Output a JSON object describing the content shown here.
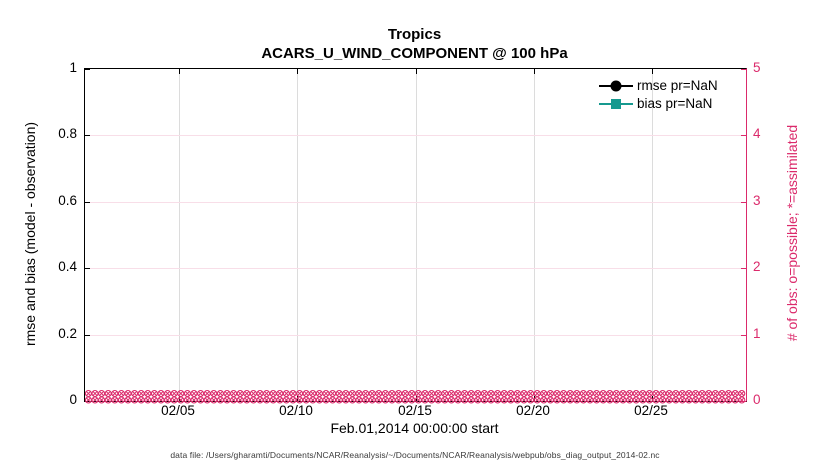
{
  "title": "Tropics",
  "subtitle": "ACARS_U_WIND_COMPONENT @ 100 hPa",
  "xlabel": "Feb.01,2014 00:00:00 start",
  "ylabel_left": "rmse and bias (model - observation)",
  "ylabel_right": "# of obs: o=possible; *=assimilated",
  "caption": "data file: /Users/gharamti/Documents/NCAR/Reanalysis/~/Documents/NCAR/Reanalysis/webpub/obs_diag_output_2014-02.nc",
  "legend": [
    {
      "label": "rmse pr=NaN",
      "color": "#000000",
      "marker": "circle"
    },
    {
      "label": "bias pr=NaN",
      "color": "#16998F",
      "marker": "square"
    }
  ],
  "colors": {
    "pink": "#DB2A6B",
    "grid_pink": "#F8DEE8",
    "grid_gray": "#DCDCDC",
    "teal": "#16998F",
    "black": "#000000"
  },
  "chart_data": {
    "type": "line",
    "title": "Tropics",
    "subtitle": "ACARS_U_WIND_COMPONENT @ 100 hPa",
    "xlabel": "Feb.01,2014 00:00:00 start",
    "ylabel_left": "rmse and bias (model - observation)",
    "ylabel_right": "# of obs: o=possible; *=assimilated",
    "x_axis": {
      "range_days": [
        0,
        28
      ],
      "start": "Feb.01,2014 00:00:00",
      "ticks": [
        {
          "label": "02/05",
          "day": 4
        },
        {
          "label": "02/10",
          "day": 9
        },
        {
          "label": "02/15",
          "day": 14
        },
        {
          "label": "02/20",
          "day": 19
        },
        {
          "label": "02/25",
          "day": 24
        }
      ]
    },
    "y_axis_left": {
      "lim": [
        0,
        1
      ],
      "ticks": [
        "0",
        "0.2",
        "0.4",
        "0.6",
        "0.8",
        "1"
      ],
      "tick_values": [
        0,
        0.2,
        0.4,
        0.6,
        0.8,
        1
      ],
      "color": "#000000"
    },
    "y_axis_right": {
      "lim": [
        0,
        5
      ],
      "ticks": [
        "0",
        "1",
        "2",
        "3",
        "4",
        "5"
      ],
      "tick_values": [
        0,
        1,
        2,
        3,
        4,
        5
      ],
      "color": "#DB2A6B"
    },
    "grid": true,
    "legend_position": "top-right-inside",
    "series": [
      {
        "name": "rmse pr=NaN",
        "color": "#000000",
        "marker": "filled-circle",
        "values": "NaN (nothing plotted)"
      },
      {
        "name": "bias pr=NaN",
        "color": "#16998F",
        "marker": "filled-square",
        "values": "NaN (nothing plotted)"
      },
      {
        "name": "# of obs possible (o markers)",
        "color": "#DB2A6B",
        "marker": "circle-with-cross",
        "constant_value": 0,
        "extent_days": [
          0,
          28
        ]
      },
      {
        "name": "# of obs assimilated (* markers)",
        "color": "#DB2A6B",
        "marker": "circle-with-cross",
        "constant_value": 0,
        "extent_days": [
          0,
          28
        ]
      }
    ],
    "annotations": [
      "data file: /Users/gharamti/Documents/NCAR/Reanalysis/~/Documents/NCAR/Reanalysis/webpub/obs_diag_output_2014-02.nc"
    ]
  }
}
